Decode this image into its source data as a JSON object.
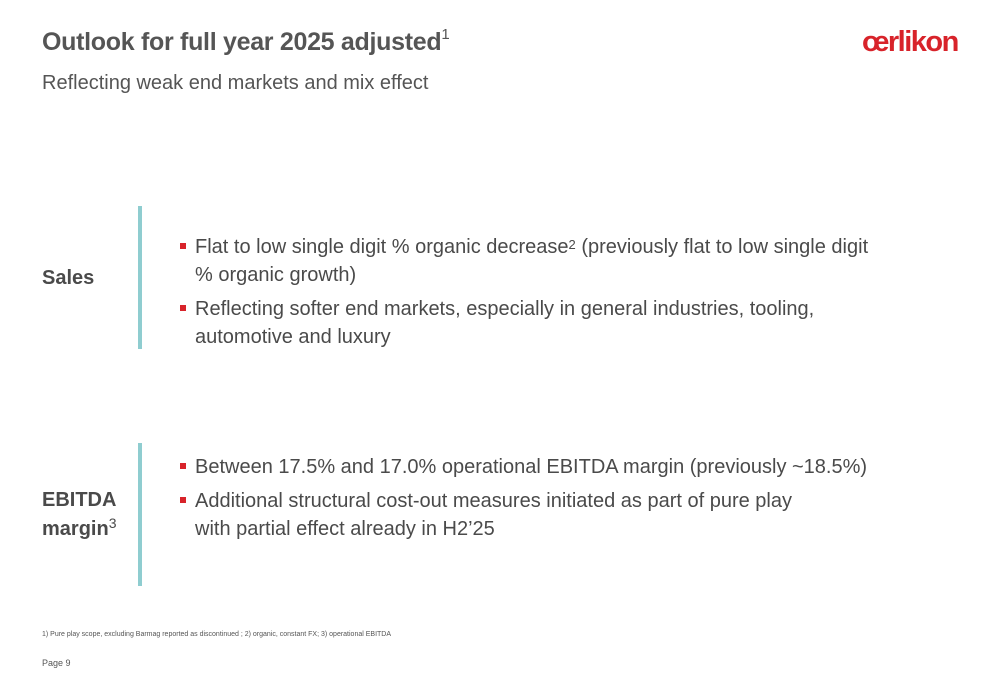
{
  "header": {
    "title": "Outlook for full year 2025 adjusted",
    "title_sup": "1",
    "subtitle": "Reflecting weak end markets and mix effect",
    "logo_text": "œrlikon"
  },
  "colors": {
    "accent_red": "#d8232a",
    "divider_teal": "#8fcdd0",
    "text_gray": "#4a4a4a"
  },
  "sections": [
    {
      "label": "Sales",
      "bullets": [
        {
          "text_before": "Flat to low single digit % organic decrease",
          "sup": "2",
          "text_after": " (previously flat to low single digit % organic growth)"
        },
        {
          "text_before": "Reflecting softer end markets, especially in general industries, tooling, automotive and luxury",
          "sup": "",
          "text_after": ""
        }
      ]
    },
    {
      "label_line1": "EBITDA",
      "label_line2": "margin",
      "label_sup": "3",
      "bullets": [
        {
          "text_before": "Between 17.5% and 17.0% operational EBITDA margin (previously ~18.5%)",
          "sup": "",
          "text_after": ""
        },
        {
          "text_before": "Additional structural cost-out measures initiated as part of pure play with partial effect already in H2’25",
          "sup": "",
          "text_after": ""
        }
      ]
    }
  ],
  "footer": {
    "footnote": "1) Pure play scope, excluding Barmag reported as discontinued ; 2) organic, constant FX; 3) operational EBITDA",
    "page": "Page 9"
  }
}
